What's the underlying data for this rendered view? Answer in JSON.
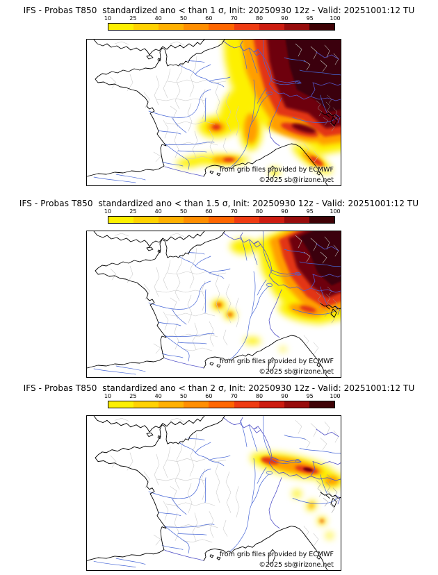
{
  "colorbar": {
    "ticks": [
      "10",
      "25",
      "40",
      "50",
      "60",
      "70",
      "80",
      "90",
      "95",
      "100"
    ],
    "colors": [
      "#fdf000",
      "#ffd200",
      "#ffb000",
      "#ff8e00",
      "#ff6600",
      "#ef3b12",
      "#cd1c10",
      "#970c0c",
      "#3f0206"
    ]
  },
  "heat_palette": {
    "yellow": "#fdf000",
    "orange": "#ff9e00",
    "red": "#e23612",
    "dark_red": "#6e0110",
    "darkest": "#3a0208"
  },
  "panels": [
    {
      "title": "IFS - Probas T850  standardized ano < than 1 σ, Init: 20250930 12z - Valid: 20251001:12 TU",
      "credit": "from grib files provided by ECMWF",
      "copyright": "©2025 sb@irizone.net"
    },
    {
      "title": "IFS - Probas T850  standardized ano < than 1.5 σ, Init: 20250930 12z - Valid: 20251001:12 TU",
      "credit": "from grib files provided by ECMWF",
      "copyright": "©2025 sb@irizone.net"
    },
    {
      "title": "IFS - Probas T850  standardized ano < than 2 σ, Init: 20250930 12z - Valid: 20251001:12 TU",
      "credit": "from grib files provided by ECMWF",
      "copyright": "©2025 sb@irizone.net"
    }
  ]
}
